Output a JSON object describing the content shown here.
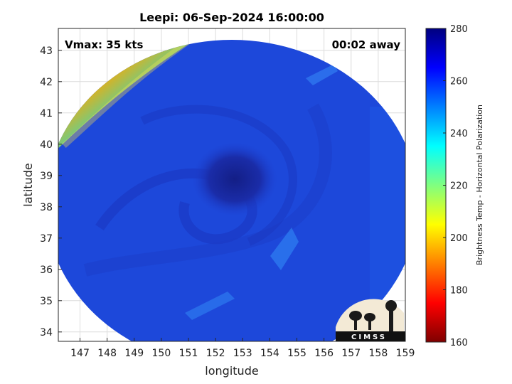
{
  "title": "Leepi: 06-Sep-2024 16:00:00",
  "overlay": {
    "vmax": "Vmax: 35 kts",
    "time_away": "00:02 away"
  },
  "axes": {
    "xlabel": "longitude",
    "ylabel": "latitude",
    "xlim": [
      146.2,
      159
    ],
    "ylim": [
      33.7,
      43.7
    ],
    "xticks": [
      "147",
      "148",
      "149",
      "150",
      "151",
      "152",
      "153",
      "154",
      "155",
      "156",
      "157",
      "158",
      "159"
    ],
    "yticks": [
      "34",
      "35",
      "36",
      "37",
      "38",
      "39",
      "40",
      "41",
      "42",
      "43"
    ],
    "grid": true
  },
  "colorbar": {
    "label": "Brightness Temp - Horizontal Polarization",
    "ticks": [
      "160",
      "180",
      "200",
      "220",
      "240",
      "260",
      "280"
    ],
    "range": [
      160,
      280
    ],
    "colors": [
      "#7f0000",
      "#ff0000",
      "#ff8000",
      "#ffff00",
      "#80ff80",
      "#00ffff",
      "#0080ff",
      "#0000ff",
      "#00007f"
    ]
  },
  "storm_center": {
    "lon": 152.8,
    "lat": 38.9
  },
  "logo": {
    "text": "CIMSS"
  },
  "colors": {
    "field_base": "#1d46d8",
    "eye": "#16259a",
    "warm_edge": "#ff4a10"
  }
}
